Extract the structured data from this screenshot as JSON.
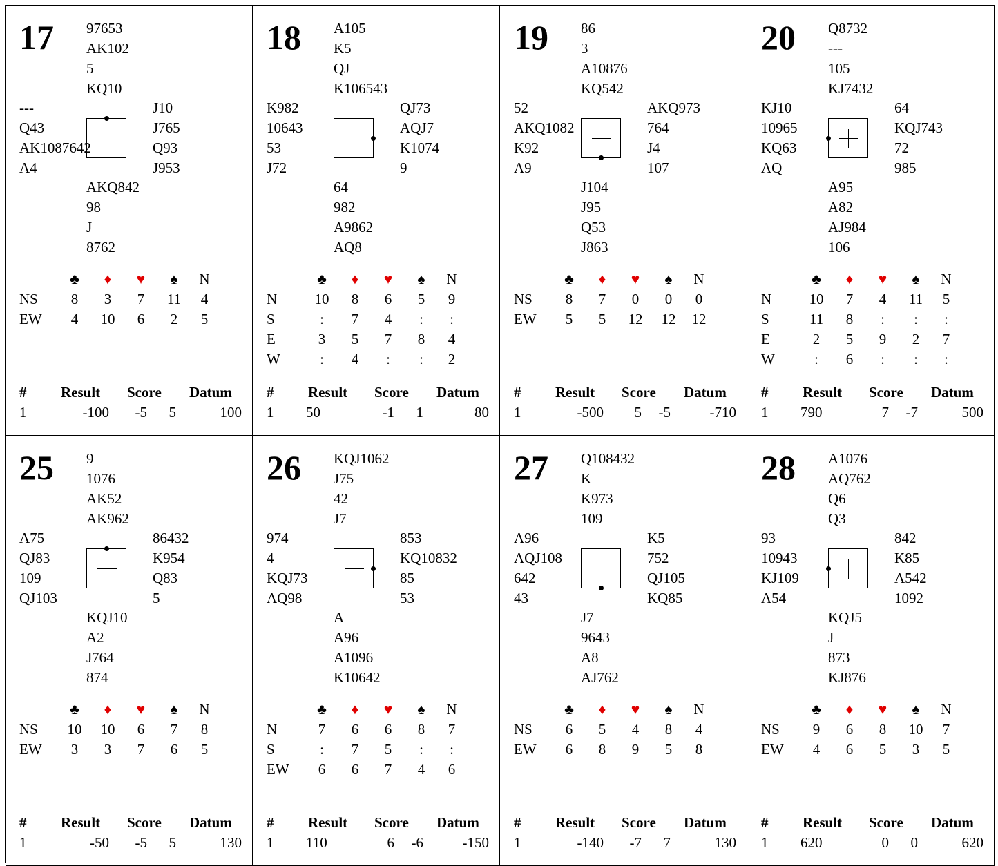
{
  "colors": {
    "heart_diamond": "#e00000",
    "club_spade": "#000000"
  },
  "strain_headers": [
    "♣",
    "♦",
    "♥",
    "♠",
    "N"
  ],
  "result_headers": {
    "num": "#",
    "result": "Result",
    "score": "Score",
    "datum": "Datum"
  },
  "boards": [
    {
      "number": "17",
      "north": [
        "97653",
        "AK102",
        "5",
        "KQ10"
      ],
      "west": [
        "---",
        "Q43",
        "AK1087642",
        "A4"
      ],
      "east": [
        "J10",
        "J765",
        "Q93",
        "J953"
      ],
      "south": [
        "AKQ842",
        "98",
        "J",
        "8762"
      ],
      "dealer": "N",
      "vul": "none",
      "dd": [
        {
          "seat": "NS",
          "vals": [
            "8",
            "3",
            "7",
            "11",
            "4"
          ]
        },
        {
          "seat": "EW",
          "vals": [
            "4",
            "10",
            "6",
            "2",
            "5"
          ]
        }
      ],
      "result": {
        "num": "1",
        "result": "-100",
        "ns": "-5",
        "ew": "5",
        "datum": "100",
        "align": "right"
      }
    },
    {
      "number": "18",
      "north": [
        "A105",
        "K5",
        "QJ",
        "K106543"
      ],
      "west": [
        "K982",
        "10643",
        "53",
        "J72"
      ],
      "east": [
        "QJ73",
        "AQJ7",
        "K1074",
        "9"
      ],
      "south": [
        "64",
        "982",
        "A9862",
        "AQ8"
      ],
      "dealer": "E",
      "vul": "ns",
      "dd": [
        {
          "seat": "N",
          "vals": [
            "10",
            "8",
            "6",
            "5",
            "9"
          ]
        },
        {
          "seat": "S",
          "vals": [
            ":",
            "7",
            "4",
            ":",
            ":"
          ]
        },
        {
          "seat": "E",
          "vals": [
            "3",
            "5",
            "7",
            "8",
            "4"
          ]
        },
        {
          "seat": "W",
          "vals": [
            ":",
            "4",
            ":",
            ":",
            "2"
          ]
        }
      ],
      "result": {
        "num": "1",
        "result": "50",
        "ns": "-1",
        "ew": "1",
        "datum": "80",
        "align": "left"
      }
    },
    {
      "number": "19",
      "north": [
        "86",
        "3",
        "A10876",
        "KQ542"
      ],
      "west": [
        "52",
        "AKQ1082",
        "K92",
        "A9"
      ],
      "east": [
        "AKQ973",
        "764",
        "J4",
        "107"
      ],
      "south": [
        "J104",
        "J95",
        "Q53",
        "J863"
      ],
      "dealer": "S",
      "vul": "ew",
      "dd": [
        {
          "seat": "NS",
          "vals": [
            "8",
            "7",
            "0",
            "0",
            "0"
          ]
        },
        {
          "seat": "EW",
          "vals": [
            "5",
            "5",
            "12",
            "12",
            "12"
          ]
        }
      ],
      "result": {
        "num": "1",
        "result": "-500",
        "ns": "5",
        "ew": "-5",
        "datum": "-710",
        "align": "right"
      }
    },
    {
      "number": "20",
      "north": [
        "Q8732",
        "---",
        "105",
        "KJ7432"
      ],
      "west": [
        "KJ10",
        "10965",
        "KQ63",
        "AQ"
      ],
      "east": [
        "64",
        "KQJ743",
        "72",
        "985"
      ],
      "south": [
        "A95",
        "A82",
        "AJ984",
        "106"
      ],
      "dealer": "W",
      "vul": "both",
      "dd": [
        {
          "seat": "N",
          "vals": [
            "10",
            "7",
            "4",
            "11",
            "5"
          ]
        },
        {
          "seat": "S",
          "vals": [
            "11",
            "8",
            ":",
            ":",
            ":"
          ]
        },
        {
          "seat": "E",
          "vals": [
            "2",
            "5",
            "9",
            "2",
            "7"
          ]
        },
        {
          "seat": "W",
          "vals": [
            ":",
            "6",
            ":",
            ":",
            ":"
          ]
        }
      ],
      "result": {
        "num": "1",
        "result": "790",
        "ns": "7",
        "ew": "-7",
        "datum": "500",
        "align": "left"
      }
    },
    {
      "number": "25",
      "north": [
        "9",
        "1076",
        "AK52",
        "AK962"
      ],
      "west": [
        "A75",
        "QJ83",
        "109",
        "QJ103"
      ],
      "east": [
        "86432",
        "K954",
        "Q83",
        "5"
      ],
      "south": [
        "KQJ10",
        "A2",
        "J764",
        "874"
      ],
      "dealer": "N",
      "vul": "ew",
      "dd": [
        {
          "seat": "NS",
          "vals": [
            "10",
            "10",
            "6",
            "7",
            "8"
          ]
        },
        {
          "seat": "EW",
          "vals": [
            "3",
            "3",
            "7",
            "6",
            "5"
          ]
        }
      ],
      "result": {
        "num": "1",
        "result": "-50",
        "ns": "-5",
        "ew": "5",
        "datum": "130",
        "align": "right"
      }
    },
    {
      "number": "26",
      "north": [
        "KQJ1062",
        "J75",
        "42",
        "J7"
      ],
      "west": [
        "974",
        "4",
        "KQJ73",
        "AQ98"
      ],
      "east": [
        "853",
        "KQ10832",
        "85",
        "53"
      ],
      "south": [
        "A",
        "A96",
        "A1096",
        "K10642"
      ],
      "dealer": "E",
      "vul": "both",
      "dd": [
        {
          "seat": "N",
          "vals": [
            "7",
            "6",
            "6",
            "8",
            "7"
          ]
        },
        {
          "seat": "S",
          "vals": [
            ":",
            "7",
            "5",
            ":",
            ":"
          ]
        },
        {
          "seat": "EW",
          "vals": [
            "6",
            "6",
            "7",
            "4",
            "6"
          ]
        }
      ],
      "result": {
        "num": "1",
        "result": "110",
        "ns": "6",
        "ew": "-6",
        "datum": "-150",
        "align": "left"
      }
    },
    {
      "number": "27",
      "north": [
        "Q108432",
        "K",
        "K973",
        "109"
      ],
      "west": [
        "A96",
        "AQJ108",
        "642",
        "43"
      ],
      "east": [
        "K5",
        "752",
        "QJ105",
        "KQ85"
      ],
      "south": [
        "J7",
        "9643",
        "A8",
        "AJ762"
      ],
      "dealer": "S",
      "vul": "none",
      "dd": [
        {
          "seat": "NS",
          "vals": [
            "6",
            "5",
            "4",
            "8",
            "4"
          ]
        },
        {
          "seat": "EW",
          "vals": [
            "6",
            "8",
            "9",
            "5",
            "8"
          ]
        }
      ],
      "result": {
        "num": "1",
        "result": "-140",
        "ns": "-7",
        "ew": "7",
        "datum": "130",
        "align": "right"
      }
    },
    {
      "number": "28",
      "north": [
        "A1076",
        "AQ762",
        "Q6",
        "Q3"
      ],
      "west": [
        "93",
        "10943",
        "KJ109",
        "A54"
      ],
      "east": [
        "842",
        "K85",
        "A542",
        "1092"
      ],
      "south": [
        "KQJ5",
        "J",
        "873",
        "KJ876"
      ],
      "dealer": "W",
      "vul": "ns",
      "dd": [
        {
          "seat": "NS",
          "vals": [
            "9",
            "6",
            "8",
            "10",
            "7"
          ]
        },
        {
          "seat": "EW",
          "vals": [
            "4",
            "6",
            "5",
            "3",
            "5"
          ]
        }
      ],
      "result": {
        "num": "1",
        "result": "620",
        "ns": "0",
        "ew": "0",
        "datum": "620",
        "align": "left"
      }
    }
  ]
}
